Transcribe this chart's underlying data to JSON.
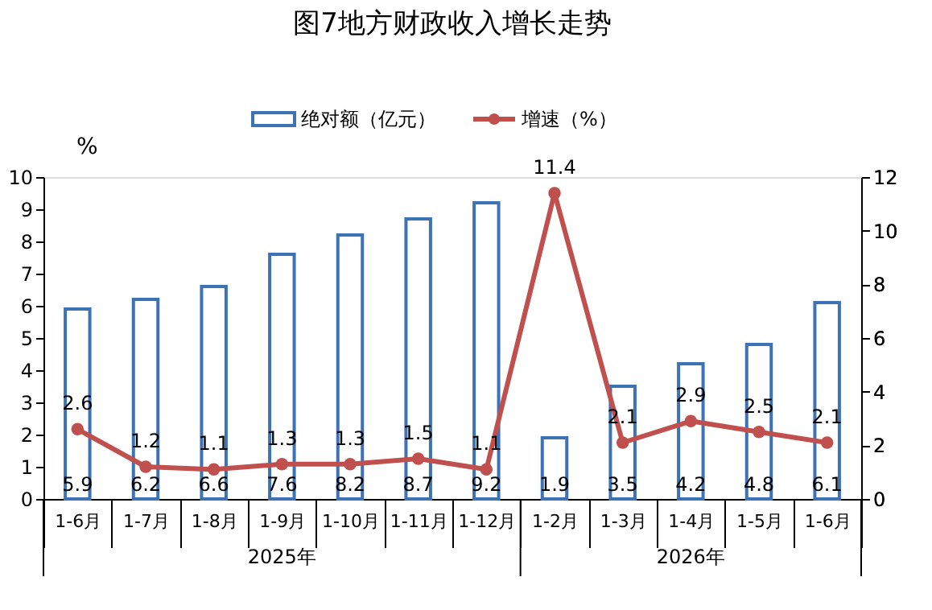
{
  "chart_data": {
    "type": "bar",
    "title": "图7地方财政收入增长走势",
    "ylabel": "%",
    "categories": [
      "1-6月",
      "1-7月",
      "1-8月",
      "1-9月",
      "1-10月",
      "1-11月",
      "1-12月",
      "1-2月",
      "1-3月",
      "1-4月",
      "1-5月",
      "1-6月"
    ],
    "series": [
      {
        "name": "绝对额（亿元）",
        "color": "#3d72b5",
        "values": [
          5.9,
          6.2,
          6.6,
          7.6,
          8.2,
          8.7,
          9.2,
          1.9,
          3.5,
          4.2,
          4.8,
          6.1
        ]
      },
      {
        "name": "增速（%）",
        "type": "line",
        "axis": "y2",
        "color": "#c0504d",
        "marker": "circle",
        "values": [
          2.6,
          1.2,
          1.1,
          1.3,
          1.3,
          1.5,
          1.1,
          11.4,
          2.1,
          2.9,
          2.5,
          2.1
        ]
      }
    ],
    "ylim": [
      0,
      10
    ],
    "yticks": [
      0,
      1,
      2,
      3,
      4,
      5,
      6,
      7,
      8,
      9,
      10
    ],
    "y2lim": [
      0,
      12
    ],
    "y2ticks": [
      0,
      2,
      4,
      6,
      8,
      10,
      12
    ],
    "data_labels": true,
    "grid": false,
    "legend": "top",
    "annotations": [
      "2025年",
      "2026年"
    ]
  }
}
